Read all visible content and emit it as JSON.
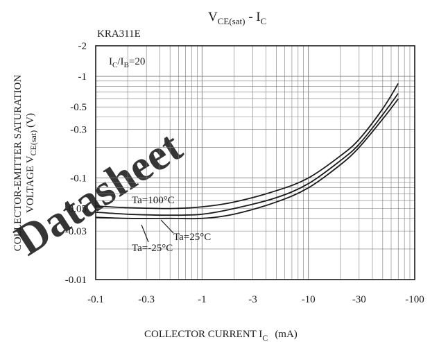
{
  "chart_data": {
    "type": "line",
    "title": "VCE(sat) - IC",
    "title_parts": {
      "main": "V",
      "sub": "CE(sat)",
      "sep": " - ",
      "main2": "I",
      "sub2": "C"
    },
    "part_number": "KRA311E",
    "condition": {
      "text": "IC/IB=20",
      "parts": [
        "I",
        "C",
        "/I",
        "B",
        "=20"
      ]
    },
    "xlabel": "COLLECTOR CURRENT IC (mA)",
    "xlabel_parts": {
      "text": "COLLECTOR CURRENT I",
      "sub": "C",
      "unit": "(mA)"
    },
    "ylabel": {
      "line1": "COLLECTOR-EMITTER SATURATION",
      "line2_pre": "VOLTAGE V",
      "line2_sub": "CE(sat)",
      "line2_unit": "(V)"
    },
    "x_scale": "log",
    "y_scale": "log",
    "xlim": [
      -0.1,
      -100
    ],
    "ylim": [
      -0.01,
      -2
    ],
    "grid": true,
    "x_ticks": [
      {
        "label": "-0.1",
        "value": 0.1
      },
      {
        "label": "-0.3",
        "value": 0.3
      },
      {
        "label": "-1",
        "value": 1
      },
      {
        "label": "-3",
        "value": 3
      },
      {
        "label": "-10",
        "value": 10
      },
      {
        "label": "-30",
        "value": 30
      },
      {
        "label": "-100",
        "value": 100
      }
    ],
    "y_ticks": [
      {
        "label": "-2",
        "value": 2
      },
      {
        "label": "-1",
        "value": 1
      },
      {
        "label": "-0.5",
        "value": 0.5
      },
      {
        "label": "-0.3",
        "value": 0.3
      },
      {
        "label": "-0.1",
        "value": 0.1
      },
      {
        "label": "-0.05",
        "value": 0.05
      },
      {
        "label": "-0.03",
        "value": 0.03
      },
      {
        "label": "-0.01",
        "value": 0.01
      }
    ],
    "series": [
      {
        "name": "Ta=100°C",
        "x": [
          -0.1,
          -0.2,
          -0.5,
          -1,
          -2,
          -5,
          -10,
          -20,
          -30,
          -50,
          -70
        ],
        "y": [
          -0.053,
          -0.051,
          -0.05,
          -0.052,
          -0.058,
          -0.075,
          -0.1,
          -0.165,
          -0.24,
          -0.48,
          -0.85
        ]
      },
      {
        "name": "Ta=25°C",
        "x": [
          -0.1,
          -0.2,
          -0.5,
          -1,
          -2,
          -5,
          -10,
          -20,
          -30,
          -50,
          -70
        ],
        "y": [
          -0.046,
          -0.044,
          -0.043,
          -0.044,
          -0.05,
          -0.064,
          -0.088,
          -0.148,
          -0.215,
          -0.42,
          -0.68
        ]
      },
      {
        "name": "Ta=-25°C",
        "x": [
          -0.1,
          -0.2,
          -0.5,
          -1,
          -2,
          -5,
          -10,
          -20,
          -30,
          -50,
          -70
        ],
        "y": [
          -0.041,
          -0.04,
          -0.04,
          -0.04,
          -0.044,
          -0.058,
          -0.08,
          -0.135,
          -0.2,
          -0.38,
          -0.6
        ]
      }
    ],
    "watermark": "Datasheet"
  }
}
